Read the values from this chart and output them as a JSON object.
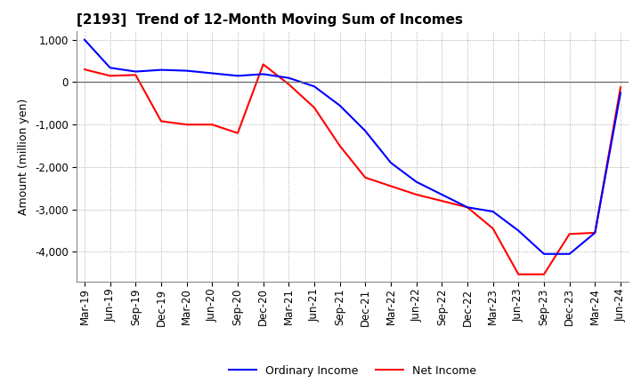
{
  "title": "[2193]  Trend of 12-Month Moving Sum of Incomes",
  "ylabel": "Amount (million yen)",
  "xlabels": [
    "Mar-19",
    "Jun-19",
    "Sep-19",
    "Dec-19",
    "Mar-20",
    "Jun-20",
    "Sep-20",
    "Dec-20",
    "Mar-21",
    "Jun-21",
    "Sep-21",
    "Dec-21",
    "Mar-22",
    "Jun-22",
    "Sep-22",
    "Dec-22",
    "Mar-23",
    "Jun-23",
    "Sep-23",
    "Dec-23",
    "Mar-24",
    "Jun-24"
  ],
  "ordinary_income": [
    1000,
    340,
    250,
    290,
    270,
    210,
    150,
    190,
    100,
    -100,
    -550,
    -1150,
    -1900,
    -2350,
    -2650,
    -2950,
    -3050,
    -3500,
    -4050,
    -4050,
    -3550,
    -250
  ],
  "net_income": [
    300,
    150,
    170,
    -920,
    -1000,
    -1000,
    -1200,
    420,
    -50,
    -600,
    -1500,
    -2250,
    -2450,
    -2650,
    -2800,
    -2950,
    -3450,
    -4530,
    -4530,
    -3580,
    -3550,
    -120
  ],
  "ordinary_income_color": "#0000ff",
  "net_income_color": "#ff0000",
  "ylim": [
    -4700,
    1200
  ],
  "yticks": [
    -4000,
    -3000,
    -2000,
    -1000,
    0,
    1000
  ],
  "background_color": "#ffffff",
  "grid_color": "#999999",
  "line_width": 1.5,
  "legend_ordinary": "Ordinary Income",
  "legend_net": "Net Income",
  "title_fontsize": 11,
  "axis_fontsize": 8.5,
  "ylabel_fontsize": 9,
  "legend_fontsize": 9
}
